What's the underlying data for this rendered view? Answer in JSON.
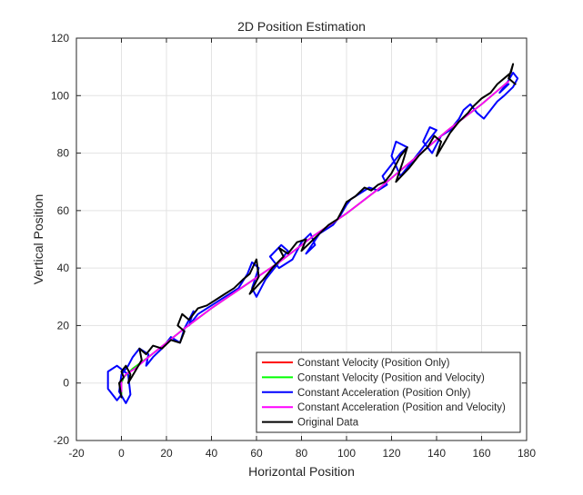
{
  "chart_data": {
    "type": "line",
    "title": "2D Position Estimation",
    "xlabel": "Horizontal Position",
    "ylabel": "Vertical Position",
    "xlim": [
      -20,
      180
    ],
    "ylim": [
      -20,
      120
    ],
    "xticks": [
      -20,
      0,
      20,
      40,
      60,
      80,
      100,
      120,
      140,
      160,
      180
    ],
    "yticks": [
      -20,
      0,
      20,
      40,
      60,
      80,
      100,
      120
    ],
    "grid": true,
    "legend_position": "bottom-right",
    "series": [
      {
        "name": "Constant Velocity (Position Only)",
        "color": "#ff0000",
        "x": [
          0,
          0,
          1,
          5,
          12,
          20,
          28,
          40,
          55,
          70,
          85,
          100,
          115,
          130,
          145,
          160,
          172
        ],
        "y": [
          -4,
          0,
          2,
          5,
          9,
          14,
          19,
          26,
          34,
          42,
          51,
          59,
          68,
          78,
          88,
          97,
          105
        ]
      },
      {
        "name": "Constant Velocity (Position and Velocity)",
        "color": "#00ff00",
        "x": [
          0,
          0,
          1,
          5,
          12,
          20,
          28,
          40,
          55,
          70,
          85,
          100,
          115,
          130,
          145,
          160,
          172
        ],
        "y": [
          -4,
          0,
          2,
          5,
          9,
          14,
          19,
          26,
          34,
          42,
          51,
          59,
          68,
          78,
          88,
          97,
          105
        ]
      },
      {
        "name": "Constant Acceleration (Position Only)",
        "color": "#0000ff",
        "x": [
          0,
          -2,
          -6,
          -6,
          -2,
          3,
          4,
          2,
          -1,
          0,
          3,
          5,
          8,
          12,
          11,
          14,
          18,
          22,
          26,
          28,
          30,
          32,
          30,
          34,
          40,
          46,
          52,
          56,
          58,
          61,
          58,
          60,
          64,
          70,
          74,
          71,
          66,
          70,
          76,
          78,
          80,
          84,
          86,
          82,
          88,
          94,
          97,
          100,
          98,
          102,
          106,
          110,
          114,
          118,
          116,
          120,
          124,
          127,
          122,
          120,
          124,
          128,
          132,
          136,
          140,
          137,
          134,
          138,
          142,
          146,
          150,
          152,
          155,
          158,
          161,
          164,
          167,
          170,
          174,
          176,
          174,
          171,
          168,
          172
        ],
        "y": [
          -4,
          -6,
          -2,
          4,
          6,
          3,
          -4,
          -7,
          -3,
          3,
          6,
          9,
          12,
          10,
          6,
          9,
          12,
          16,
          14,
          19,
          22,
          25,
          20,
          24,
          27,
          30,
          33,
          38,
          42,
          40,
          33,
          30,
          36,
          42,
          46,
          48,
          44,
          40,
          43,
          46,
          49,
          52,
          48,
          45,
          52,
          55,
          58,
          62,
          60,
          64,
          66,
          68,
          67,
          69,
          72,
          76,
          80,
          82,
          84,
          79,
          72,
          76,
          80,
          84,
          88,
          89,
          84,
          80,
          86,
          88,
          92,
          95,
          97,
          94,
          92,
          95,
          98,
          100,
          103,
          106,
          108,
          104,
          101,
          104
        ]
      },
      {
        "name": "Constant Acceleration (Position and Velocity)",
        "color": "#ff00ff",
        "x": [
          0,
          0,
          2,
          6,
          12,
          20,
          28,
          40,
          55,
          70,
          85,
          100,
          115,
          130,
          145,
          160,
          172
        ],
        "y": [
          -3,
          1,
          3,
          5,
          9,
          14,
          19,
          26,
          34,
          42,
          51,
          59,
          68,
          78,
          88,
          97,
          105
        ]
      },
      {
        "name": "Original Data",
        "color": "#000000",
        "x": [
          0,
          -1,
          1,
          0,
          2,
          4,
          3,
          6,
          9,
          8,
          11,
          14,
          18,
          22,
          26,
          28,
          25,
          27,
          30,
          34,
          38,
          42,
          46,
          50,
          54,
          57,
          60,
          61,
          57,
          63,
          67,
          72,
          70,
          74,
          78,
          82,
          80,
          84,
          88,
          92,
          96,
          98,
          100,
          104,
          108,
          111,
          114,
          117,
          120,
          122,
          124,
          127,
          125,
          122,
          128,
          132,
          136,
          139,
          142,
          140,
          146,
          150,
          154,
          156,
          160,
          164,
          167,
          170,
          173,
          174,
          172,
          175
        ],
        "y": [
          -5,
          0,
          2,
          4,
          6,
          3,
          0,
          4,
          8,
          12,
          10,
          13,
          12,
          15,
          14,
          18,
          20,
          24,
          22,
          26,
          27,
          29,
          31,
          33,
          36,
          38,
          43,
          37,
          31,
          36,
          40,
          44,
          47,
          45,
          49,
          50,
          46,
          49,
          52,
          55,
          57,
          60,
          63,
          65,
          68,
          67,
          69,
          70,
          73,
          76,
          79,
          82,
          77,
          70,
          75,
          79,
          82,
          86,
          84,
          79,
          87,
          91,
          94,
          96,
          99,
          101,
          104,
          106,
          108,
          111,
          106,
          104
        ]
      }
    ]
  }
}
